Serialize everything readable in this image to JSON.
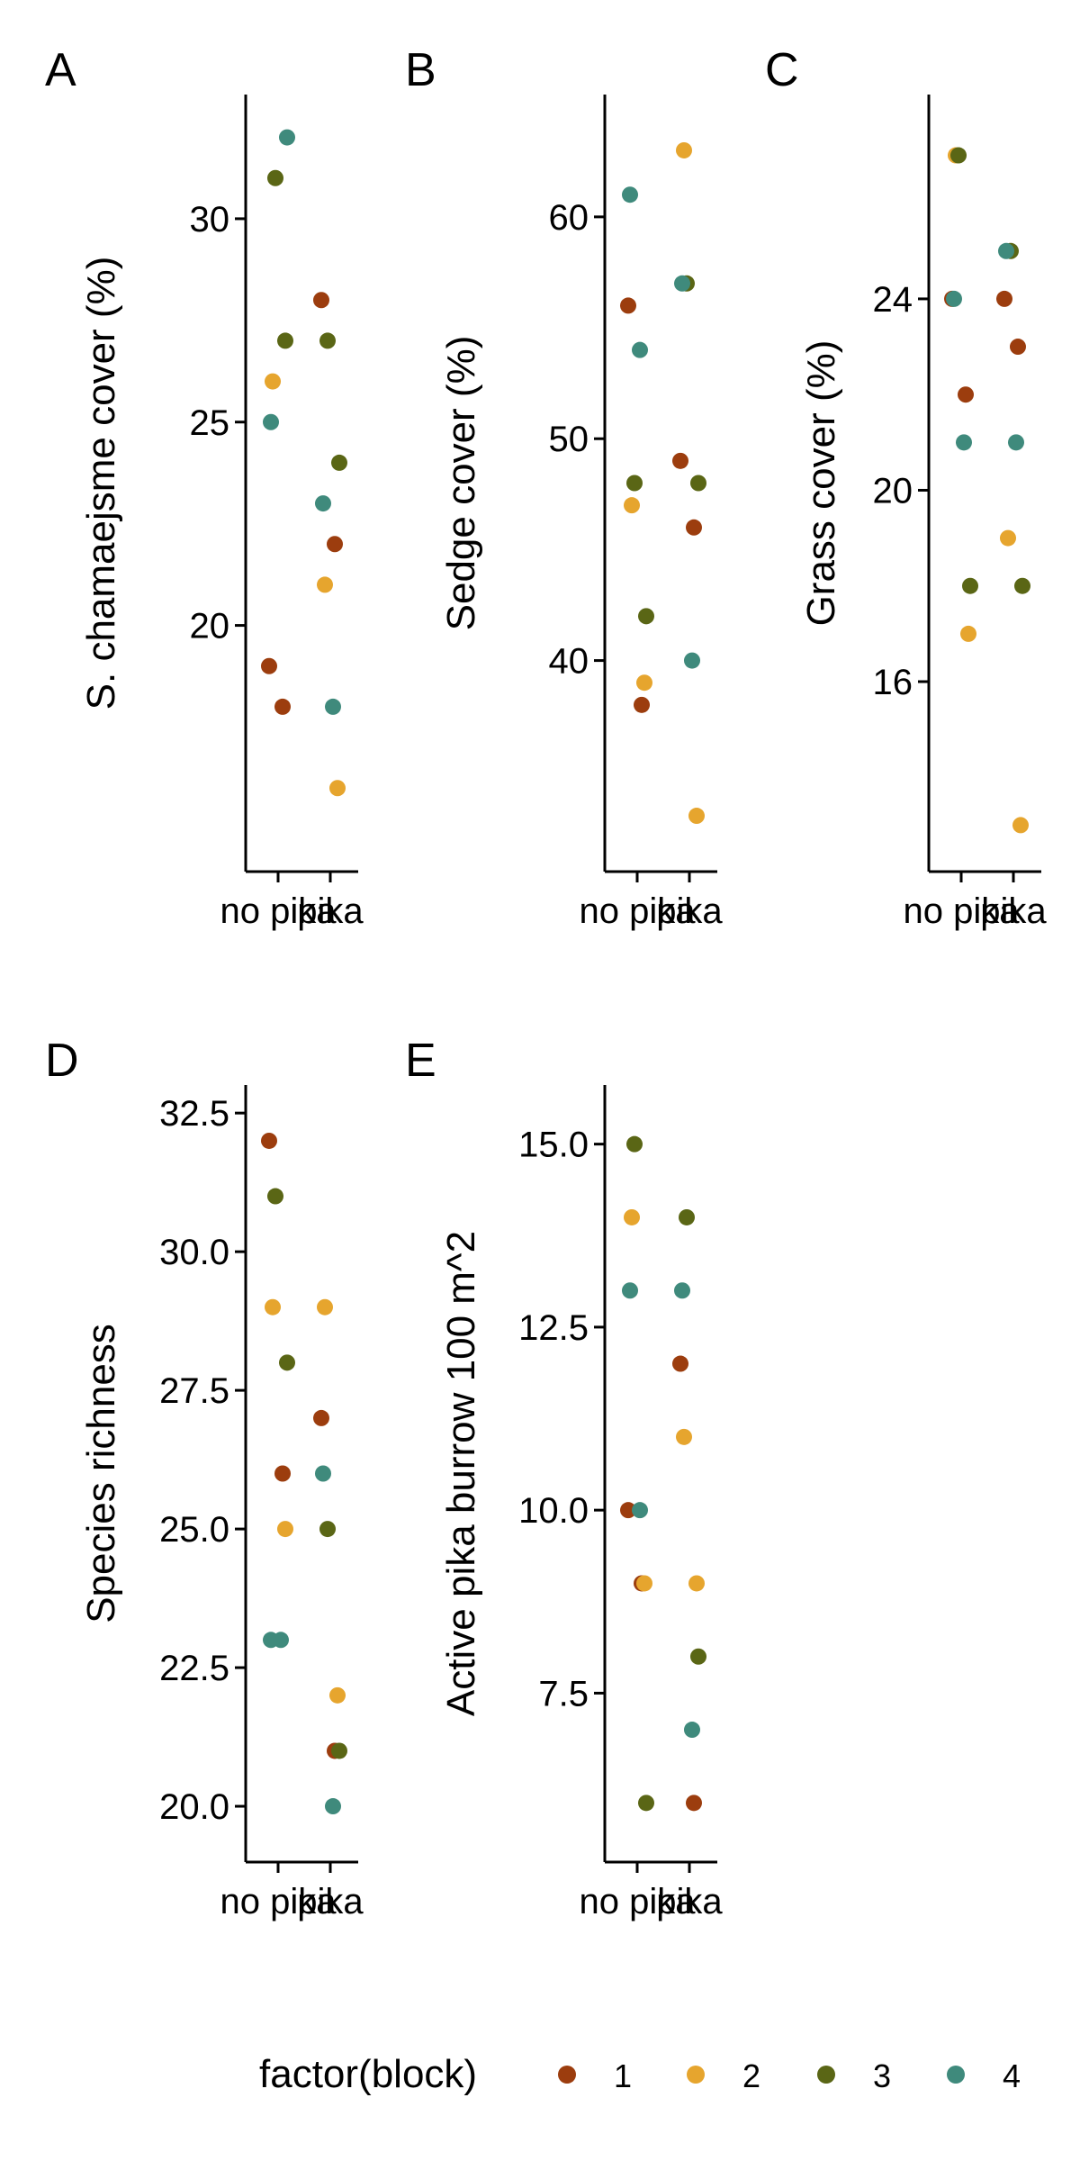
{
  "legend": {
    "title": "factor(block)",
    "items": [
      {
        "label": "1",
        "color": "#9C3D0E"
      },
      {
        "label": "2",
        "color": "#E6A52E"
      },
      {
        "label": "3",
        "color": "#5A6615"
      },
      {
        "label": "4",
        "color": "#3F8A7C"
      }
    ]
  },
  "chart_data": [
    {
      "type": "scatter",
      "panel_label": "A",
      "ylabel": "S. chamaejsme cover (%)",
      "categories": [
        "no pika",
        "pika"
      ],
      "ylim": [
        14.5,
        32.5
      ],
      "yticks": [
        20,
        25,
        30
      ],
      "points": [
        {
          "x": "no pika",
          "block": "1",
          "y": 19
        },
        {
          "x": "no pika",
          "block": "1",
          "y": 18
        },
        {
          "x": "no pika",
          "block": "2",
          "y": 26
        },
        {
          "x": "no pika",
          "block": "3",
          "y": 27
        },
        {
          "x": "no pika",
          "block": "3",
          "y": 31
        },
        {
          "x": "no pika",
          "block": "4",
          "y": 32
        },
        {
          "x": "no pika",
          "block": "4",
          "y": 25
        },
        {
          "x": "pika",
          "block": "1",
          "y": 28
        },
        {
          "x": "pika",
          "block": "1",
          "y": 22
        },
        {
          "x": "pika",
          "block": "2",
          "y": 21
        },
        {
          "x": "pika",
          "block": "2",
          "y": 16
        },
        {
          "x": "pika",
          "block": "3",
          "y": 27
        },
        {
          "x": "pika",
          "block": "3",
          "y": 24
        },
        {
          "x": "pika",
          "block": "4",
          "y": 23
        },
        {
          "x": "pika",
          "block": "4",
          "y": 18
        }
      ]
    },
    {
      "type": "scatter",
      "panel_label": "B",
      "ylabel": "Sedge cover (%)",
      "categories": [
        "no pika",
        "pika"
      ],
      "ylim": [
        31.5,
        64.5
      ],
      "yticks": [
        40,
        50,
        60
      ],
      "points": [
        {
          "x": "no pika",
          "block": "1",
          "y": 56
        },
        {
          "x": "no pika",
          "block": "1",
          "y": 38
        },
        {
          "x": "no pika",
          "block": "2",
          "y": 47
        },
        {
          "x": "no pika",
          "block": "2",
          "y": 39
        },
        {
          "x": "no pika",
          "block": "3",
          "y": 48
        },
        {
          "x": "no pika",
          "block": "3",
          "y": 42
        },
        {
          "x": "no pika",
          "block": "4",
          "y": 61
        },
        {
          "x": "no pika",
          "block": "4",
          "y": 54
        },
        {
          "x": "pika",
          "block": "1",
          "y": 49
        },
        {
          "x": "pika",
          "block": "1",
          "y": 46
        },
        {
          "x": "pika",
          "block": "2",
          "y": 63
        },
        {
          "x": "pika",
          "block": "2",
          "y": 33
        },
        {
          "x": "pika",
          "block": "3",
          "y": 57
        },
        {
          "x": "pika",
          "block": "3",
          "y": 48
        },
        {
          "x": "pika",
          "block": "4",
          "y": 57
        },
        {
          "x": "pika",
          "block": "4",
          "y": 40
        }
      ]
    },
    {
      "type": "scatter",
      "panel_label": "C",
      "ylabel": "Grass cover (%)",
      "categories": [
        "no pika",
        "pika"
      ],
      "ylim": [
        12.5,
        27.8
      ],
      "yticks": [
        16,
        20,
        24
      ],
      "points": [
        {
          "x": "no pika",
          "block": "1",
          "y": 24
        },
        {
          "x": "no pika",
          "block": "1",
          "y": 22
        },
        {
          "x": "no pika",
          "block": "2",
          "y": 27
        },
        {
          "x": "no pika",
          "block": "2",
          "y": 17
        },
        {
          "x": "no pika",
          "block": "3",
          "y": 27
        },
        {
          "x": "no pika",
          "block": "3",
          "y": 18
        },
        {
          "x": "no pika",
          "block": "4",
          "y": 24
        },
        {
          "x": "no pika",
          "block": "4",
          "y": 21
        },
        {
          "x": "pika",
          "block": "1",
          "y": 24
        },
        {
          "x": "pika",
          "block": "1",
          "y": 23
        },
        {
          "x": "pika",
          "block": "2",
          "y": 19
        },
        {
          "x": "pika",
          "block": "2",
          "y": 13
        },
        {
          "x": "pika",
          "block": "3",
          "y": 25
        },
        {
          "x": "pika",
          "block": "3",
          "y": 18
        },
        {
          "x": "pika",
          "block": "4",
          "y": 25
        },
        {
          "x": "pika",
          "block": "4",
          "y": 21
        }
      ]
    },
    {
      "type": "scatter",
      "panel_label": "D",
      "ylabel": "Species richness",
      "categories": [
        "no pika",
        "pika"
      ],
      "ylim": [
        19.4,
        32.6
      ],
      "yticks": [
        20.0,
        22.5,
        25.0,
        27.5,
        30.0,
        32.5
      ],
      "ytick_labels": [
        "20.0",
        "22.5",
        "25.0",
        "27.5",
        "30.0",
        "32.5"
      ],
      "points": [
        {
          "x": "no pika",
          "block": "1",
          "y": 32
        },
        {
          "x": "no pika",
          "block": "1",
          "y": 26
        },
        {
          "x": "no pika",
          "block": "2",
          "y": 29
        },
        {
          "x": "no pika",
          "block": "2",
          "y": 25
        },
        {
          "x": "no pika",
          "block": "3",
          "y": 31
        },
        {
          "x": "no pika",
          "block": "3",
          "y": 28
        },
        {
          "x": "no pika",
          "block": "4",
          "y": 23
        },
        {
          "x": "no pika",
          "block": "4",
          "y": 23
        },
        {
          "x": "pika",
          "block": "1",
          "y": 27
        },
        {
          "x": "pika",
          "block": "1",
          "y": 21
        },
        {
          "x": "pika",
          "block": "2",
          "y": 29
        },
        {
          "x": "pika",
          "block": "2",
          "y": 22
        },
        {
          "x": "pika",
          "block": "3",
          "y": 25
        },
        {
          "x": "pika",
          "block": "3",
          "y": 21
        },
        {
          "x": "pika",
          "block": "4",
          "y": 26
        },
        {
          "x": "pika",
          "block": "4",
          "y": 20
        }
      ]
    },
    {
      "type": "scatter",
      "panel_label": "E",
      "ylabel": "Active pika burrow 100 m^2",
      "categories": [
        "no pika",
        "pika"
      ],
      "ylim": [
        5.5,
        15.5
      ],
      "yticks": [
        7.5,
        10.0,
        12.5,
        15.0
      ],
      "ytick_labels": [
        "7.5",
        "10.0",
        "12.5",
        "15.0"
      ],
      "points": [
        {
          "x": "no pika",
          "block": "1",
          "y": 10
        },
        {
          "x": "no pika",
          "block": "1",
          "y": 9
        },
        {
          "x": "no pika",
          "block": "2",
          "y": 14
        },
        {
          "x": "no pika",
          "block": "2",
          "y": 9
        },
        {
          "x": "no pika",
          "block": "3",
          "y": 15
        },
        {
          "x": "no pika",
          "block": "3",
          "y": 6
        },
        {
          "x": "no pika",
          "block": "4",
          "y": 13
        },
        {
          "x": "no pika",
          "block": "4",
          "y": 10
        },
        {
          "x": "pika",
          "block": "1",
          "y": 12
        },
        {
          "x": "pika",
          "block": "1",
          "y": 6
        },
        {
          "x": "pika",
          "block": "2",
          "y": 11
        },
        {
          "x": "pika",
          "block": "2",
          "y": 9
        },
        {
          "x": "pika",
          "block": "3",
          "y": 14
        },
        {
          "x": "pika",
          "block": "3",
          "y": 8
        },
        {
          "x": "pika",
          "block": "4",
          "y": 13
        },
        {
          "x": "pika",
          "block": "4",
          "y": 7
        }
      ]
    }
  ]
}
